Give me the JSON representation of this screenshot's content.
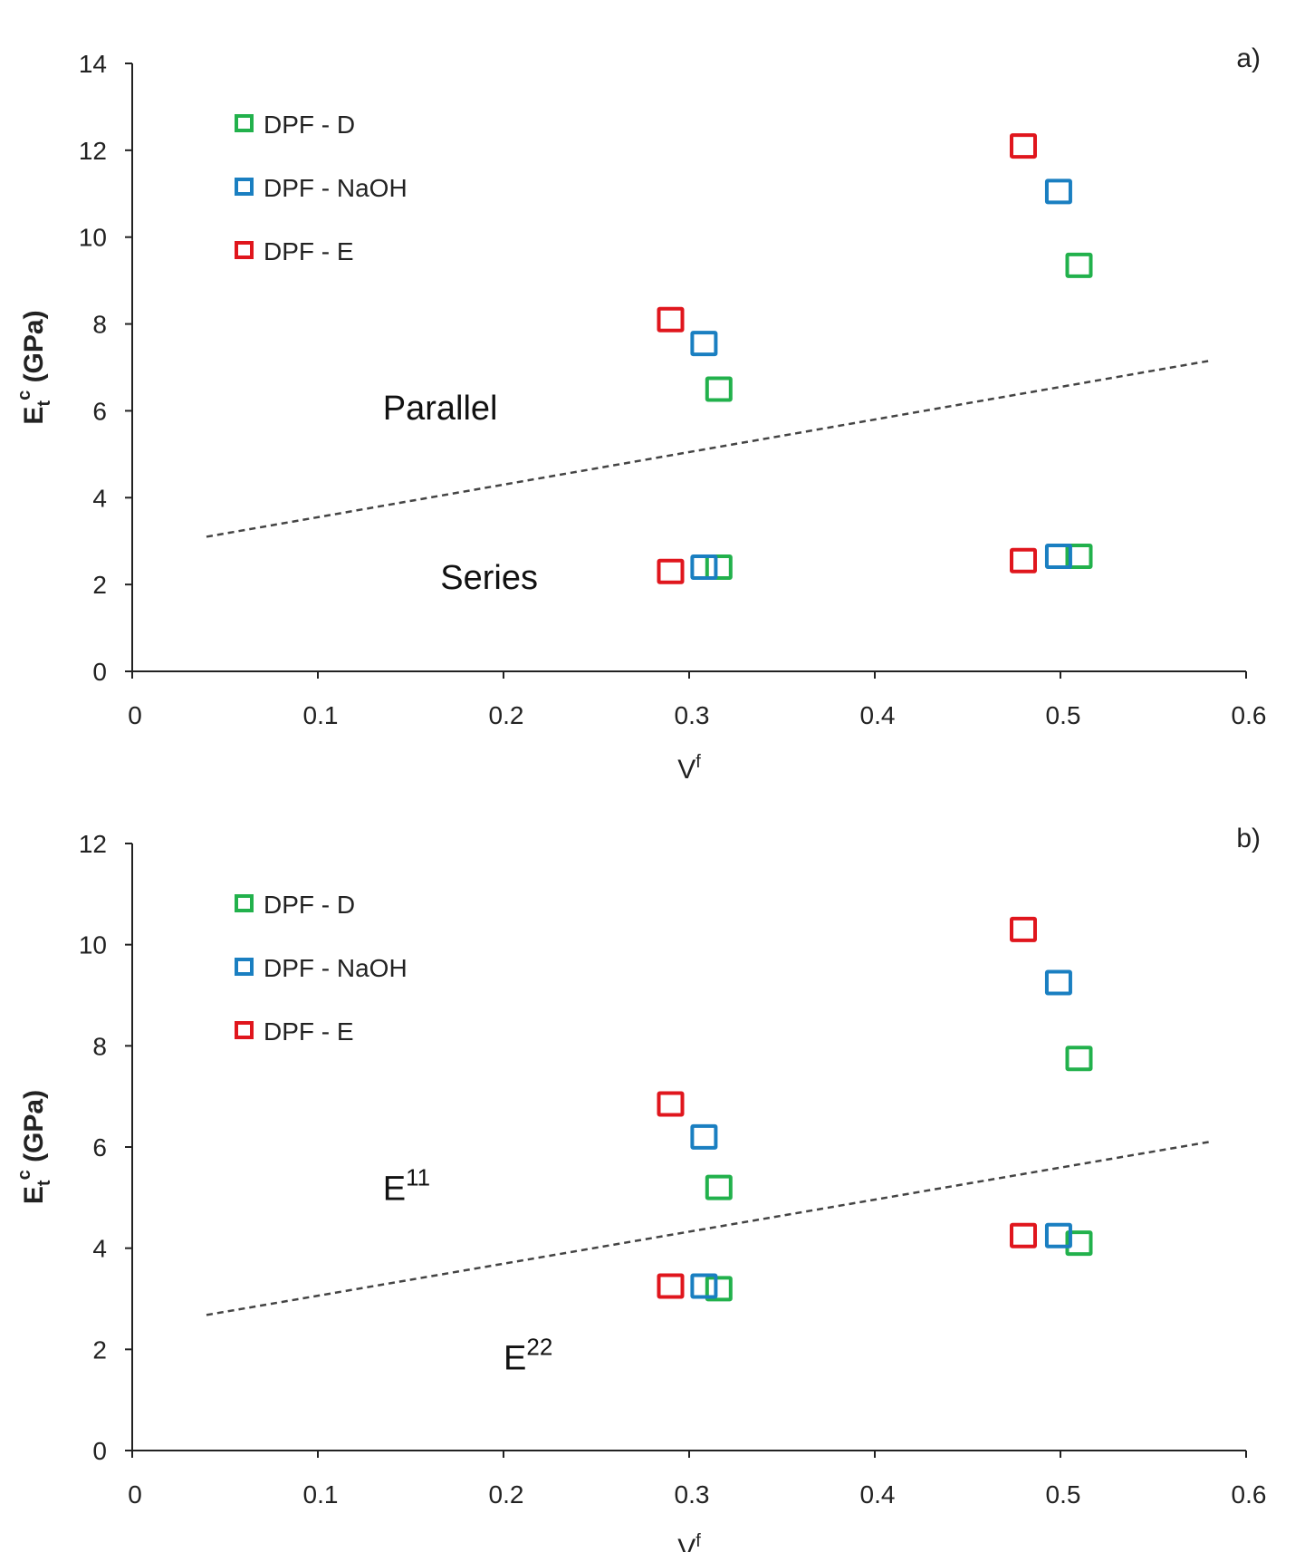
{
  "chart_data": [
    {
      "type": "scatter",
      "panel_label": "a)",
      "xlabel": {
        "base": "V",
        "sup": "f"
      },
      "ylabel": {
        "base": "E",
        "sub": "t",
        "sup": "c",
        "unit": " (GPa)"
      },
      "xlim": [
        0,
        0.6
      ],
      "ylim": [
        0,
        14
      ],
      "xticks": [
        "0",
        "0.1",
        "0.2",
        "0.3",
        "0.4",
        "0.5",
        "0.6"
      ],
      "yticks": [
        "0",
        "2",
        "4",
        "6",
        "8",
        "10",
        "12",
        "14"
      ],
      "grid": false,
      "legend_position": "top-left",
      "series": [
        {
          "name": "DPF - D",
          "color": "#22b14c",
          "x": [
            0.316,
            0.51,
            0.316,
            0.51
          ],
          "y": [
            6.5,
            9.35,
            2.4,
            2.65
          ]
        },
        {
          "name": "DPF - NaOH",
          "color": "#1a7fc1",
          "x": [
            0.308,
            0.499,
            0.308,
            0.499
          ],
          "y": [
            7.55,
            11.05,
            2.4,
            2.65
          ]
        },
        {
          "name": "DPF - E",
          "color": "#e0161d",
          "x": [
            0.29,
            0.48,
            0.29,
            0.48
          ],
          "y": [
            8.1,
            12.1,
            2.3,
            2.55
          ]
        }
      ],
      "reference_line": {
        "style": "dashed",
        "x": [
          0.04,
          0.58
        ],
        "y": [
          3.1,
          7.15
        ]
      },
      "annotations": [
        {
          "text": "Parallel",
          "sup": "",
          "x": 0.135,
          "y": 5.8
        },
        {
          "text": "Series",
          "sup": "",
          "x": 0.166,
          "y": 1.9
        }
      ]
    },
    {
      "type": "scatter",
      "panel_label": "b)",
      "xlabel": {
        "base": "V",
        "sup": "f"
      },
      "ylabel": {
        "base": "E",
        "sub": "t",
        "sup": "c",
        "unit": " (GPa)"
      },
      "xlim": [
        0,
        0.6
      ],
      "ylim": [
        0,
        12
      ],
      "xticks": [
        "0",
        "0.1",
        "0.2",
        "0.3",
        "0.4",
        "0.5",
        "0.6"
      ],
      "yticks": [
        "0",
        "2",
        "4",
        "6",
        "8",
        "10",
        "12"
      ],
      "grid": false,
      "legend_position": "top-left",
      "series": [
        {
          "name": "DPF - D",
          "color": "#22b14c",
          "x": [
            0.316,
            0.51,
            0.316,
            0.51
          ],
          "y": [
            5.2,
            7.75,
            3.2,
            4.1
          ]
        },
        {
          "name": "DPF - NaOH",
          "color": "#1a7fc1",
          "x": [
            0.308,
            0.499,
            0.308,
            0.499
          ],
          "y": [
            6.2,
            9.25,
            3.25,
            4.25
          ]
        },
        {
          "name": "DPF - E",
          "color": "#e0161d",
          "x": [
            0.29,
            0.48,
            0.29,
            0.48
          ],
          "y": [
            6.85,
            10.3,
            3.25,
            4.25
          ]
        }
      ],
      "reference_line": {
        "style": "dashed",
        "x": [
          0.04,
          0.58
        ],
        "y": [
          2.68,
          6.1
        ]
      },
      "annotations": [
        {
          "text": "E",
          "sup": "11",
          "x": 0.135,
          "y": 4.95
        },
        {
          "text": "E",
          "sup": "22",
          "x": 0.2,
          "y": 1.6
        }
      ]
    }
  ]
}
